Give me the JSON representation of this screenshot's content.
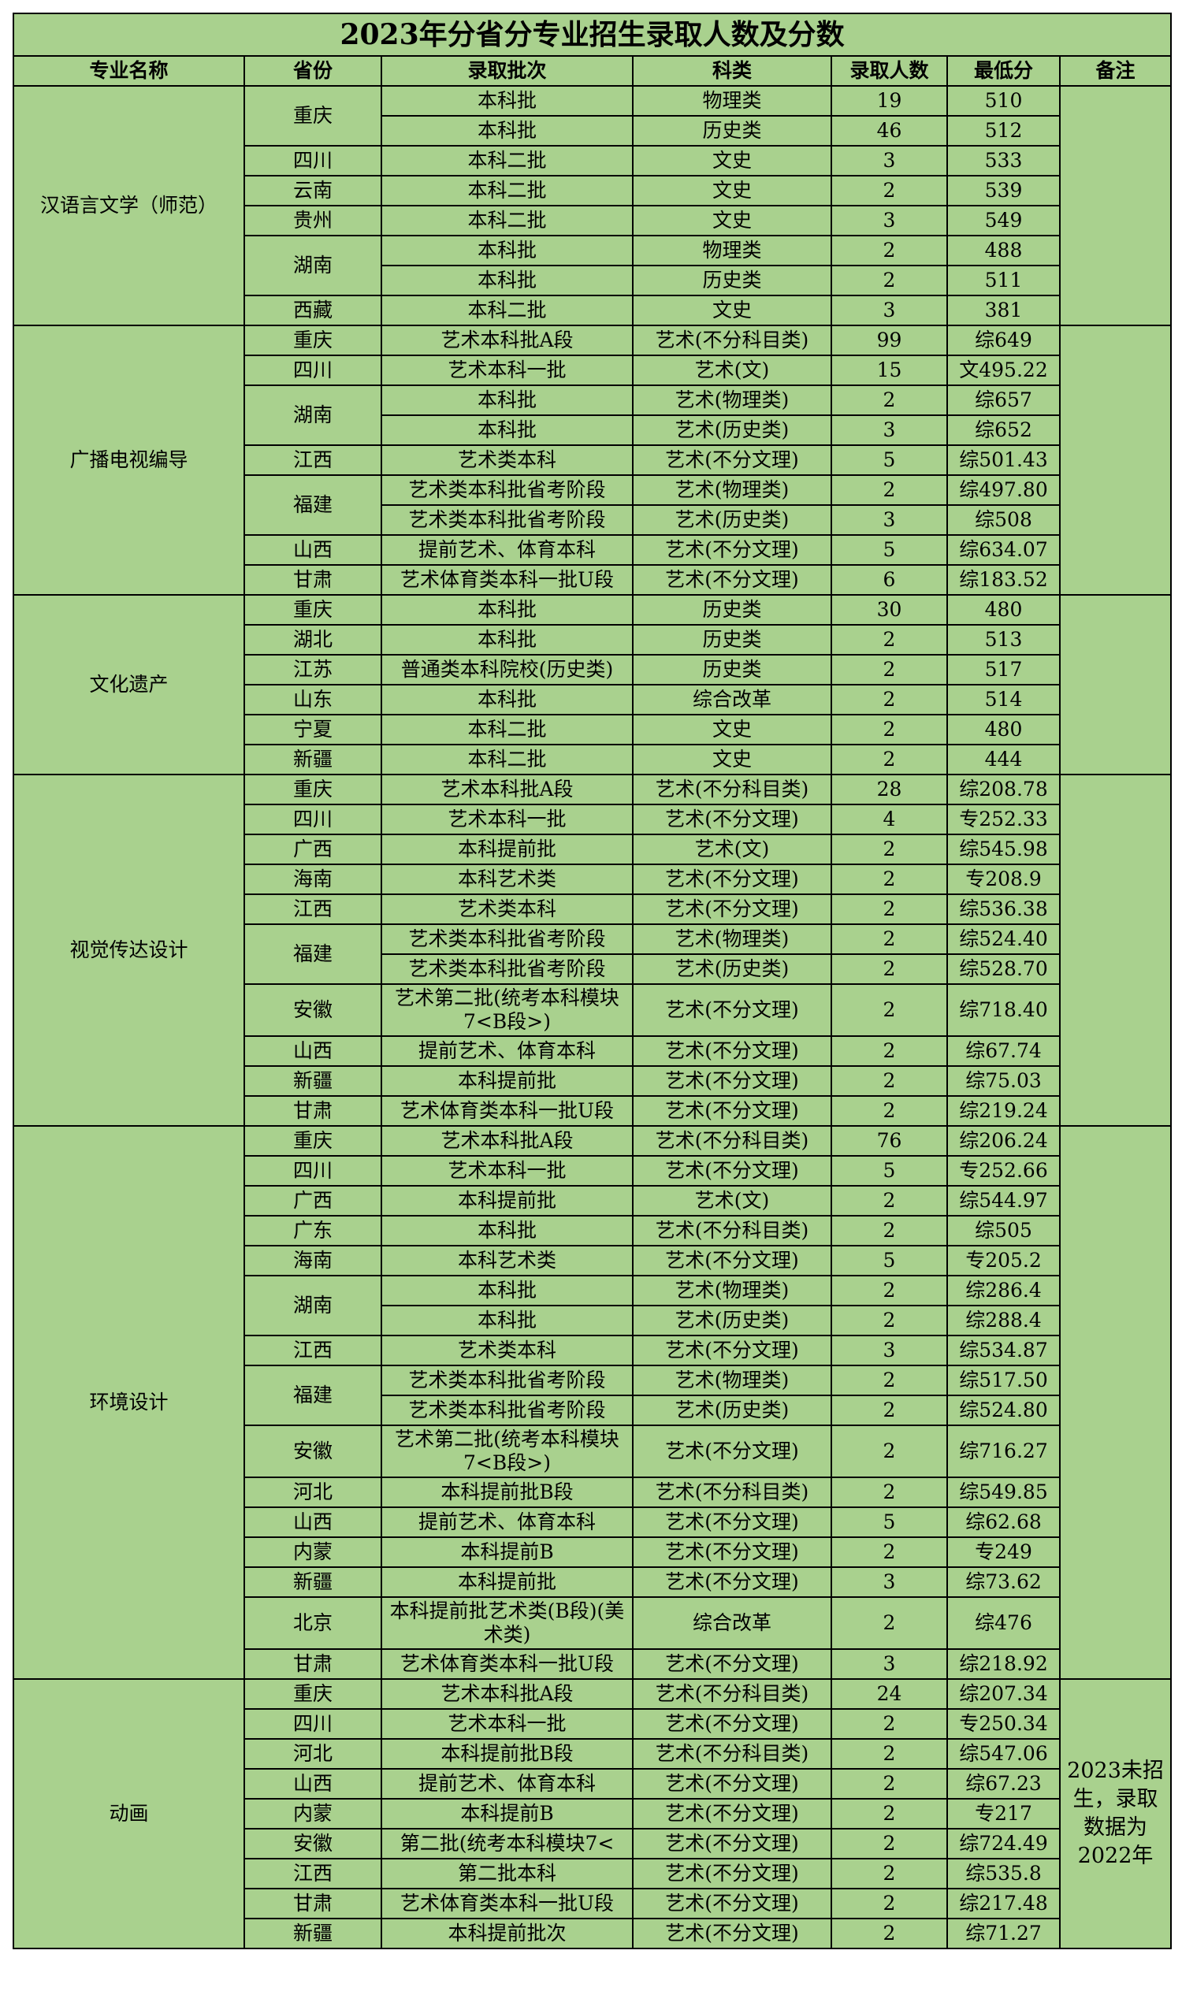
{
  "table": {
    "title": "2023年分省分专业招生录取人数及分数",
    "headers": [
      "专业名称",
      "省份",
      "录取批次",
      "科类",
      "录取人数",
      "最低分",
      "备注"
    ],
    "groups": [
      {
        "major": "汉语言文学（师范）",
        "provinces": [
          {
            "name": "重庆",
            "rows": [
              {
                "batch": "本科批",
                "subject": "物理类",
                "count": 19,
                "score": "510"
              },
              {
                "batch": "本科批",
                "subject": "历史类",
                "count": 46,
                "score": "512"
              }
            ]
          },
          {
            "name": "四川",
            "rows": [
              {
                "batch": "本科二批",
                "subject": "文史",
                "count": 3,
                "score": "533"
              }
            ]
          },
          {
            "name": "云南",
            "rows": [
              {
                "batch": "本科二批",
                "subject": "文史",
                "count": 2,
                "score": "539"
              }
            ]
          },
          {
            "name": "贵州",
            "rows": [
              {
                "batch": "本科二批",
                "subject": "文史",
                "count": 3,
                "score": "549"
              }
            ]
          },
          {
            "name": "湖南",
            "rows": [
              {
                "batch": "本科批",
                "subject": "物理类",
                "count": 2,
                "score": "488"
              },
              {
                "batch": "本科批",
                "subject": "历史类",
                "count": 2,
                "score": "511"
              }
            ]
          },
          {
            "name": "西藏",
            "rows": [
              {
                "batch": "本科二批",
                "subject": "文史",
                "count": 3,
                "score": "381"
              }
            ]
          }
        ]
      },
      {
        "major": "广播电视编导",
        "provinces": [
          {
            "name": "重庆",
            "rows": [
              {
                "batch": "艺术本科批A段",
                "subject": "艺术(不分科目类)",
                "count": 99,
                "score": "综649"
              }
            ]
          },
          {
            "name": "四川",
            "rows": [
              {
                "batch": "艺术本科一批",
                "subject": "艺术(文)",
                "count": 15,
                "score": "文495.22"
              }
            ]
          },
          {
            "name": "湖南",
            "rows": [
              {
                "batch": "本科批",
                "subject": "艺术(物理类)",
                "count": 2,
                "score": "综657"
              },
              {
                "batch": "本科批",
                "subject": "艺术(历史类)",
                "count": 3,
                "score": "综652"
              }
            ]
          },
          {
            "name": "江西",
            "rows": [
              {
                "batch": "艺术类本科",
                "subject": "艺术(不分文理)",
                "count": 5,
                "score": "综501.43"
              }
            ]
          },
          {
            "name": "福建",
            "rows": [
              {
                "batch": "艺术类本科批省考阶段",
                "subject": "艺术(物理类)",
                "count": 2,
                "score": "综497.80"
              },
              {
                "batch": "艺术类本科批省考阶段",
                "subject": "艺术(历史类)",
                "count": 3,
                "score": "综508"
              }
            ]
          },
          {
            "name": "山西",
            "rows": [
              {
                "batch": "提前艺术、体育本科",
                "subject": "艺术(不分文理)",
                "count": 5,
                "score": "综634.07"
              }
            ]
          },
          {
            "name": "甘肃",
            "rows": [
              {
                "batch": "艺术体育类本科一批U段",
                "subject": "艺术(不分文理)",
                "count": 6,
                "score": "综183.52"
              }
            ]
          }
        ]
      },
      {
        "major": "文化遗产",
        "provinces": [
          {
            "name": "重庆",
            "rows": [
              {
                "batch": "本科批",
                "subject": "历史类",
                "count": 30,
                "score": "480"
              }
            ]
          },
          {
            "name": "湖北",
            "rows": [
              {
                "batch": "本科批",
                "subject": "历史类",
                "count": 2,
                "score": "513"
              }
            ]
          },
          {
            "name": "江苏",
            "rows": [
              {
                "batch": "普通类本科院校(历史类)",
                "subject": "历史类",
                "count": 2,
                "score": "517"
              }
            ]
          },
          {
            "name": "山东",
            "rows": [
              {
                "batch": "本科批",
                "subject": "综合改革",
                "count": 2,
                "score": "514"
              }
            ]
          },
          {
            "name": "宁夏",
            "rows": [
              {
                "batch": "本科二批",
                "subject": "文史",
                "count": 2,
                "score": "480"
              }
            ]
          },
          {
            "name": "新疆",
            "rows": [
              {
                "batch": "本科二批",
                "subject": "文史",
                "count": 2,
                "score": "444"
              }
            ]
          }
        ]
      },
      {
        "major": "视觉传达设计",
        "provinces": [
          {
            "name": "重庆",
            "rows": [
              {
                "batch": "艺术本科批A段",
                "subject": "艺术(不分科目类)",
                "count": 28,
                "score": "综208.78"
              }
            ]
          },
          {
            "name": "四川",
            "rows": [
              {
                "batch": "艺术本科一批",
                "subject": "艺术(不分文理)",
                "count": 4,
                "score": "专252.33"
              }
            ]
          },
          {
            "name": "广西",
            "rows": [
              {
                "batch": "本科提前批",
                "subject": "艺术(文)",
                "count": 2,
                "score": "综545.98"
              }
            ]
          },
          {
            "name": "海南",
            "rows": [
              {
                "batch": "本科艺术类",
                "subject": "艺术(不分文理)",
                "count": 2,
                "score": "专208.9"
              }
            ]
          },
          {
            "name": "江西",
            "rows": [
              {
                "batch": "艺术类本科",
                "subject": "艺术(不分文理)",
                "count": 2,
                "score": "综536.38"
              }
            ]
          },
          {
            "name": "福建",
            "rows": [
              {
                "batch": "艺术类本科批省考阶段",
                "subject": "艺术(物理类)",
                "count": 2,
                "score": "综524.40"
              },
              {
                "batch": "艺术类本科批省考阶段",
                "subject": "艺术(历史类)",
                "count": 2,
                "score": "综528.70"
              }
            ]
          },
          {
            "name": "安徽",
            "rows": [
              {
                "batch": "艺术第二批(统考本科模块7<B段>)",
                "subject": "艺术(不分文理)",
                "count": 2,
                "score": "综718.40"
              }
            ]
          },
          {
            "name": "山西",
            "rows": [
              {
                "batch": "提前艺术、体育本科",
                "subject": "艺术(不分文理)",
                "count": 2,
                "score": "综67.74"
              }
            ]
          },
          {
            "name": "新疆",
            "rows": [
              {
                "batch": "本科提前批",
                "subject": "艺术(不分文理)",
                "count": 2,
                "score": "综75.03"
              }
            ]
          },
          {
            "name": "甘肃",
            "rows": [
              {
                "batch": "艺术体育类本科一批U段",
                "subject": "艺术(不分文理)",
                "count": 2,
                "score": "综219.24"
              }
            ]
          }
        ]
      },
      {
        "major": "环境设计",
        "provinces": [
          {
            "name": "重庆",
            "rows": [
              {
                "batch": "艺术本科批A段",
                "subject": "艺术(不分科目类)",
                "count": 76,
                "score": "综206.24"
              }
            ]
          },
          {
            "name": "四川",
            "rows": [
              {
                "batch": "艺术本科一批",
                "subject": "艺术(不分文理)",
                "count": 5,
                "score": "专252.66"
              }
            ]
          },
          {
            "name": "广西",
            "rows": [
              {
                "batch": "本科提前批",
                "subject": "艺术(文)",
                "count": 2,
                "score": "综544.97"
              }
            ]
          },
          {
            "name": "广东",
            "rows": [
              {
                "batch": "本科批",
                "subject": "艺术(不分科目类)",
                "count": 2,
                "score": "综505"
              }
            ]
          },
          {
            "name": "海南",
            "rows": [
              {
                "batch": "本科艺术类",
                "subject": "艺术(不分文理)",
                "count": 5,
                "score": "专205.2"
              }
            ]
          },
          {
            "name": "湖南",
            "rows": [
              {
                "batch": "本科批",
                "subject": "艺术(物理类)",
                "count": 2,
                "score": "综286.4"
              },
              {
                "batch": "本科批",
                "subject": "艺术(历史类)",
                "count": 2,
                "score": "综288.4"
              }
            ]
          },
          {
            "name": "江西",
            "rows": [
              {
                "batch": "艺术类本科",
                "subject": "艺术(不分文理)",
                "count": 3,
                "score": "综534.87"
              }
            ]
          },
          {
            "name": "福建",
            "rows": [
              {
                "batch": "艺术类本科批省考阶段",
                "subject": "艺术(物理类)",
                "count": 2,
                "score": "综517.50"
              },
              {
                "batch": "艺术类本科批省考阶段",
                "subject": "艺术(历史类)",
                "count": 2,
                "score": "综524.80"
              }
            ]
          },
          {
            "name": "安徽",
            "rows": [
              {
                "batch": "艺术第二批(统考本科模块7<B段>)",
                "subject": "艺术(不分文理)",
                "count": 2,
                "score": "综716.27"
              }
            ]
          },
          {
            "name": "河北",
            "rows": [
              {
                "batch": "本科提前批B段",
                "subject": "艺术(不分科目类)",
                "count": 2,
                "score": "综549.85"
              }
            ]
          },
          {
            "name": "山西",
            "rows": [
              {
                "batch": "提前艺术、体育本科",
                "subject": "艺术(不分文理)",
                "count": 5,
                "score": "综62.68"
              }
            ]
          },
          {
            "name": "内蒙",
            "rows": [
              {
                "batch": "本科提前B",
                "subject": "艺术(不分文理)",
                "count": 2,
                "score": "专249"
              }
            ]
          },
          {
            "name": "新疆",
            "rows": [
              {
                "batch": "本科提前批",
                "subject": "艺术(不分文理)",
                "count": 3,
                "score": "综73.62"
              }
            ]
          },
          {
            "name": "北京",
            "rows": [
              {
                "batch": "本科提前批艺术类(B段)(美术类)",
                "subject": "综合改革",
                "count": 2,
                "score": "综476"
              }
            ]
          },
          {
            "name": "甘肃",
            "rows": [
              {
                "batch": "艺术体育类本科一批U段",
                "subject": "艺术(不分文理)",
                "count": 3,
                "score": "综218.92"
              }
            ]
          }
        ]
      },
      {
        "major": "动画",
        "note": "2023未招生，录取数据为2022年",
        "provinces": [
          {
            "name": "重庆",
            "rows": [
              {
                "batch": "艺术本科批A段",
                "subject": "艺术(不分科目类)",
                "count": 24,
                "score": "综207.34"
              }
            ]
          },
          {
            "name": "四川",
            "rows": [
              {
                "batch": "艺术本科一批",
                "subject": "艺术(不分文理)",
                "count": 2,
                "score": "专250.34"
              }
            ]
          },
          {
            "name": "河北",
            "rows": [
              {
                "batch": "本科提前批B段",
                "subject": "艺术(不分科目类)",
                "count": 2,
                "score": "综547.06"
              }
            ]
          },
          {
            "name": "山西",
            "rows": [
              {
                "batch": "提前艺术、体育本科",
                "subject": "艺术(不分文理)",
                "count": 2,
                "score": "综67.23"
              }
            ]
          },
          {
            "name": "内蒙",
            "rows": [
              {
                "batch": "本科提前B",
                "subject": "艺术(不分文理)",
                "count": 2,
                "score": "专217"
              }
            ]
          },
          {
            "name": "安徽",
            "rows": [
              {
                "batch": "第二批(统考本科模块7<",
                "subject": "艺术(不分文理)",
                "count": 2,
                "score": "综724.49"
              }
            ]
          },
          {
            "name": "江西",
            "rows": [
              {
                "batch": "第二批本科",
                "subject": "艺术(不分文理)",
                "count": 2,
                "score": "综535.8"
              }
            ]
          },
          {
            "name": "甘肃",
            "rows": [
              {
                "batch": "艺术体育类本科一批U段",
                "subject": "艺术(不分文理)",
                "count": 2,
                "score": "综217.48"
              }
            ]
          },
          {
            "name": "新疆",
            "rows": [
              {
                "batch": "本科提前批次",
                "subject": "艺术(不分文理)",
                "count": 2,
                "score": "综71.27"
              }
            ]
          }
        ]
      }
    ]
  }
}
